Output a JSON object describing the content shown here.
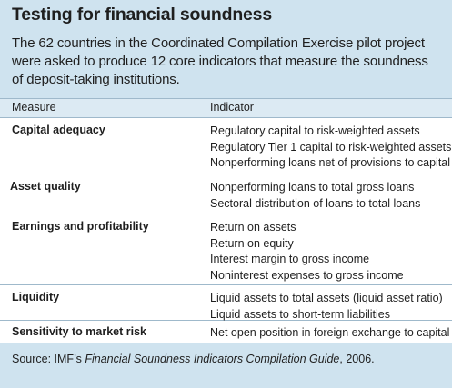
{
  "title": "Testing for financial soundness",
  "intro_lines": [
    "The 62 countries in the Coordinated Compilation Exercise pilot project",
    "were asked to produce 12 core indicators that measure the soundness",
    "of deposit-taking institutions."
  ],
  "table": {
    "headers": {
      "measure": "Measure",
      "indicator": "Indicator"
    },
    "rows": [
      {
        "measure": "Capital adequacy",
        "indicators": [
          "Regulatory capital to risk-weighted assets",
          "Regulatory Tier 1 capital to risk-weighted assets",
          "Nonperforming loans net of provisions to capital"
        ]
      },
      {
        "measure": "Asset quality",
        "indicators": [
          "Nonperforming loans to total gross loans",
          "Sectoral distribution of loans to total loans"
        ]
      },
      {
        "measure": "Earnings and profitability",
        "indicators": [
          "Return on assets",
          "Return on equity",
          "Interest margin to gross income",
          "Noninterest expenses to gross income"
        ]
      },
      {
        "measure": "Liquidity",
        "indicators": [
          "Liquid assets to total assets (liquid asset ratio)",
          "Liquid assets to short-term liabilities"
        ]
      },
      {
        "measure": "Sensitivity to market risk",
        "indicators": [
          "Net open position in foreign exchange to capital"
        ]
      }
    ]
  },
  "source": {
    "prefix": "Source: IMF’s ",
    "title_italic": "Financial Soundness Indicators Compilation Guide",
    "suffix": ", 2006."
  }
}
